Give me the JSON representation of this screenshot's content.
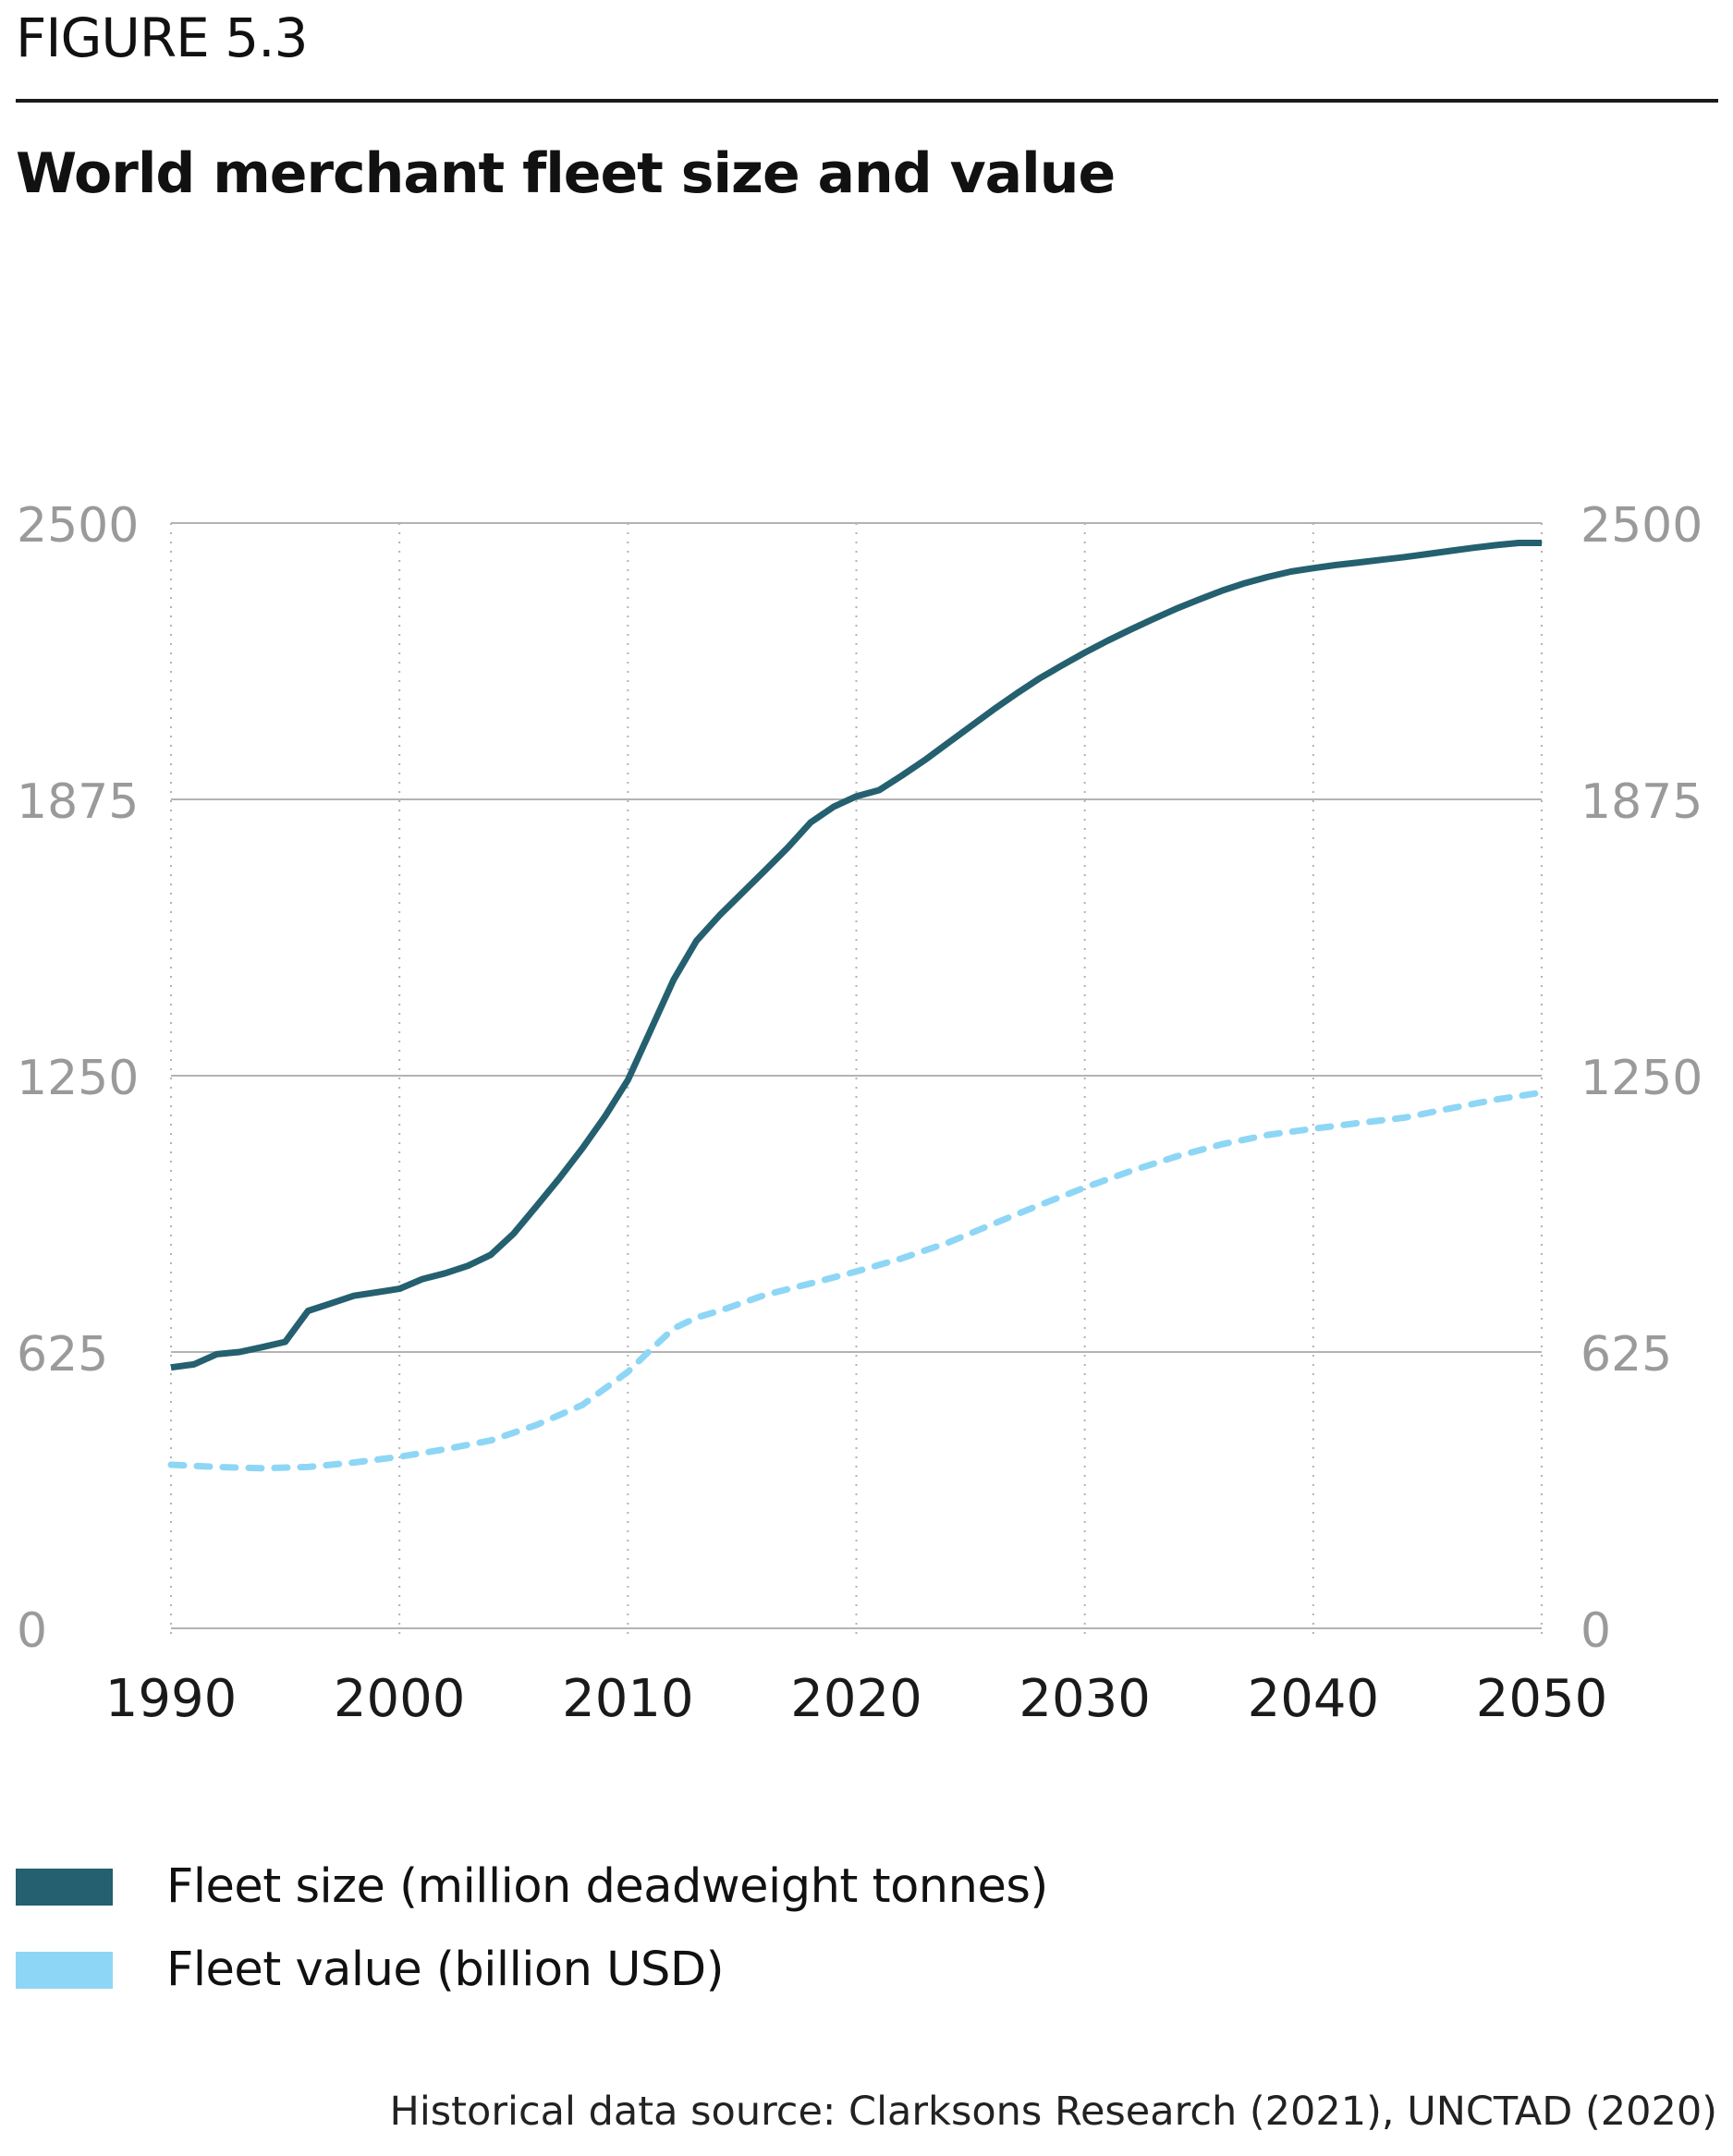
{
  "figure_label": "FIGURE 5.3",
  "title": "World merchant fleet size and value",
  "source": "Historical data source: Clarksons Research (2021), UNCTAD (2020)",
  "colors": {
    "fleet_size": "#24606f",
    "fleet_value": "#8ed6f5",
    "grid": "#b3b3b3",
    "tick_label": "#9a9a9a",
    "x_tick_label": "#1a1a1a"
  },
  "chart_data": {
    "type": "line",
    "title": "World merchant fleet size and value",
    "xlabel": "",
    "ylabel": "",
    "xlim": [
      1990,
      2050
    ],
    "ylim": [
      0,
      2500
    ],
    "y_right_lim": [
      0,
      2500
    ],
    "x_ticks": [
      "1990",
      "2000",
      "2010",
      "2020",
      "2030",
      "2040",
      "2050"
    ],
    "y_ticks": [
      "0",
      "625",
      "1250",
      "1875",
      "2500"
    ],
    "y_right_ticks": [
      "0",
      "625",
      "1250",
      "1875",
      "2500"
    ],
    "grid": true,
    "legend_position": "bottom-left",
    "series": [
      {
        "name": "Fleet size (million deadweight tonnes)",
        "style": "solid",
        "color": "#24606f",
        "x": [
          1990,
          1991,
          1992,
          1993,
          1994,
          1995,
          1996,
          1997,
          1998,
          1999,
          2000,
          2001,
          2002,
          2003,
          2004,
          2005,
          2006,
          2007,
          2008,
          2009,
          2010,
          2011,
          2012,
          2013,
          2014,
          2015,
          2016,
          2017,
          2018,
          2019,
          2020,
          2021,
          2022,
          2023,
          2024,
          2025,
          2026,
          2027,
          2028,
          2029,
          2030,
          2031,
          2032,
          2033,
          2034,
          2035,
          2036,
          2037,
          2038,
          2039,
          2040,
          2041,
          2042,
          2043,
          2044,
          2045,
          2046,
          2047,
          2048,
          2049,
          2050
        ],
        "values": [
          590,
          597,
          620,
          625,
          636,
          648,
          718,
          735,
          752,
          760,
          768,
          790,
          803,
          820,
          845,
          893,
          955,
          1018,
          1085,
          1158,
          1240,
          1353,
          1467,
          1555,
          1612,
          1663,
          1714,
          1766,
          1823,
          1858,
          1882,
          1896,
          1929,
          1964,
          2002,
          2040,
          2078,
          2114,
          2148,
          2178,
          2207,
          2234,
          2259,
          2283,
          2306,
          2327,
          2347,
          2364,
          2378,
          2390,
          2398,
          2405,
          2411,
          2417,
          2423,
          2430,
          2437,
          2444,
          2450,
          2455,
          2455
        ]
      },
      {
        "name": "Fleet value (billion USD)",
        "style": "dashed",
        "color": "#8ed6f5",
        "x": [
          1990,
          1992,
          1994,
          1996,
          1998,
          2000,
          2002,
          2004,
          2006,
          2008,
          2010,
          2011,
          2012,
          2013,
          2014,
          2016,
          2018,
          2020,
          2022,
          2024,
          2026,
          2028,
          2030,
          2032,
          2034,
          2036,
          2038,
          2040,
          2042,
          2044,
          2046,
          2048,
          2050
        ],
        "values": [
          370,
          365,
          362,
          365,
          375,
          388,
          405,
          425,
          460,
          505,
          580,
          630,
          678,
          703,
          718,
          754,
          780,
          807,
          837,
          872,
          915,
          957,
          997,
          1034,
          1067,
          1095,
          1116,
          1130,
          1143,
          1155,
          1176,
          1196,
          1212
        ]
      }
    ]
  },
  "legend": {
    "items": [
      {
        "label": "Fleet size (million deadweight tonnes)",
        "color": "#24606f"
      },
      {
        "label": "Fleet value (billion USD)",
        "color": "#8ed6f5"
      }
    ]
  }
}
